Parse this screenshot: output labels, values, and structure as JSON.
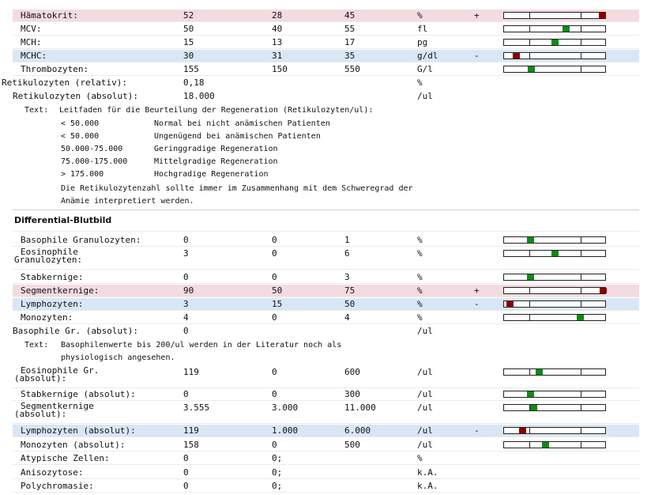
{
  "rows_top": [
    {
      "name": "Hämatokrit:",
      "value": "52",
      "min": "28",
      "max": "45",
      "unit": "%",
      "flag": "+",
      "status": "high",
      "pos": 0.97,
      "color": "red"
    },
    {
      "name": "MCV:",
      "value": "50",
      "min": "40",
      "max": "55",
      "unit": "fl",
      "flag": "",
      "status": "normal",
      "pos": 0.61,
      "color": "green"
    },
    {
      "name": "MCH:",
      "value": "15",
      "min": "13",
      "max": "17",
      "unit": "pg",
      "flag": "",
      "status": "normal",
      "pos": 0.5,
      "color": "green"
    },
    {
      "name": "MCHC:",
      "value": "30",
      "min": "31",
      "max": "35",
      "unit": "g/dl",
      "flag": "-",
      "status": "low",
      "pos": 0.12,
      "color": "red"
    },
    {
      "name": "Thrombozyten:",
      "value": "155",
      "min": "150",
      "max": "550",
      "unit": "G/l",
      "flag": "",
      "status": "normal",
      "pos": 0.27,
      "color": "green"
    }
  ],
  "retic_rel": {
    "name": "Retikulozyten (relativ):",
    "value": "0,18",
    "unit": "%"
  },
  "retic_abs": {
    "name": "Retikulozyten (absolut):",
    "value": "18.000",
    "unit": "/ul"
  },
  "retic_text": {
    "prefix": "Text:",
    "heading": "Leitfaden für die Beurteilung der Regeneration (Retikulozyten/ul):",
    "items": [
      {
        "range": "< 50.000",
        "desc": "Normal bei nicht anämischen Patienten"
      },
      {
        "range": "< 50.000",
        "desc": "Ungenügend bei anämischen Patienten"
      },
      {
        "range": "50.000-75.000",
        "desc": "Geringgradige Regeneration"
      },
      {
        "range": "75.000-175.000",
        "desc": "Mittelgradige Regeneration"
      },
      {
        "range": "> 175.000",
        "desc": "Hochgradige Regeneration"
      }
    ],
    "footer1": "Die Retikulozytenzahl sollte immer im Zusammenhang mit dem Schweregrad der",
    "footer2": "Anämie interpretiert werden."
  },
  "section_title": "Differential-Blutbild",
  "rows_diff": [
    {
      "name": "Basophile Granulozyten:",
      "value": "0",
      "min": "0",
      "max": "1",
      "unit": "%",
      "flag": "",
      "status": "normal",
      "pos": 0.26,
      "color": "green"
    },
    {
      "name": "Eosinophile",
      "name2": "Granulozyten:",
      "value": "3",
      "min": "0",
      "max": "6",
      "unit": "%",
      "flag": "",
      "status": "normal",
      "pos": 0.5,
      "color": "green"
    },
    {
      "name": "Stabkernige:",
      "value": "0",
      "min": "0",
      "max": "3",
      "unit": "%",
      "flag": "",
      "status": "normal",
      "pos": 0.26,
      "color": "green"
    },
    {
      "name": "Segmentkernige:",
      "value": "90",
      "min": "50",
      "max": "75",
      "unit": "%",
      "flag": "+",
      "status": "high",
      "pos": 0.98,
      "color": "red"
    },
    {
      "name": "Lymphozyten:",
      "value": "3",
      "min": "15",
      "max": "50",
      "unit": "%",
      "flag": "-",
      "status": "low",
      "pos": 0.06,
      "color": "red"
    },
    {
      "name": "Monozyten:",
      "value": "4",
      "min": "0",
      "max": "4",
      "unit": "%",
      "flag": "",
      "status": "normal",
      "pos": 0.75,
      "color": "green"
    }
  ],
  "baso_abs": {
    "name": "Basophile Gr. (absolut):",
    "value": "0",
    "unit": "/ul"
  },
  "baso_text": {
    "prefix": "Text:",
    "line1": "Basophilenwerte bis 200/ul werden in der Literatur noch als",
    "line2": "physiologisch angesehen."
  },
  "rows_abs": [
    {
      "name": "Eosinophile Gr.",
      "name2": "(absolut):",
      "value": "119",
      "min": "0",
      "max": "600",
      "unit": "/ul",
      "flag": "",
      "status": "normal",
      "pos": 0.35,
      "color": "green"
    },
    {
      "name": "Stabkernige (absolut):",
      "value": "0",
      "min": "0",
      "max": "300",
      "unit": "/ul",
      "flag": "",
      "status": "normal",
      "pos": 0.26,
      "color": "green"
    },
    {
      "name": "Segmentkernige",
      "name2": "(absolut):",
      "value": "3.555",
      "min": "3.000",
      "max": "11.000",
      "unit": "/ul",
      "flag": "",
      "status": "normal",
      "pos": 0.29,
      "color": "green"
    },
    {
      "name": "Lymphozyten (absolut):",
      "value": "119",
      "min": "1.000",
      "max": "6.000",
      "unit": "/ul",
      "flag": "-",
      "status": "low",
      "pos": 0.18,
      "color": "red"
    },
    {
      "name": "Monozyten (absolut):",
      "value": "158",
      "min": "0",
      "max": "500",
      "unit": "/ul",
      "flag": "",
      "status": "normal",
      "pos": 0.41,
      "color": "green"
    },
    {
      "name": "Atypische Zellen:",
      "value": "0",
      "min": "0;",
      "max": "",
      "unit": "%",
      "flag": "",
      "status": "none"
    },
    {
      "name": "Anisozytose:",
      "value": "0",
      "min": "0;",
      "max": "",
      "unit": "k.A.",
      "flag": "",
      "status": "none"
    },
    {
      "name": "Polychromasie:",
      "value": "0",
      "min": "0;",
      "max": "",
      "unit": "k.A.",
      "flag": "",
      "status": "none"
    }
  ]
}
